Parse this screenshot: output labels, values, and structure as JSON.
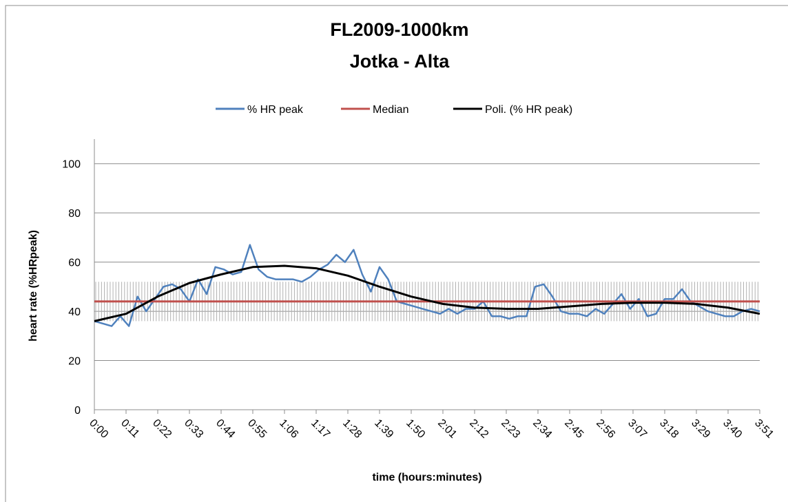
{
  "chart_data": {
    "type": "line",
    "title": [
      "FL2009-1000km",
      "Jotka - Alta"
    ],
    "xlabel": "time (hours:minutes)",
    "ylabel": "heart rate (%HRpeak)",
    "xlim": [
      0,
      231
    ],
    "xticks": [
      {
        "value": 0,
        "label": "0:00"
      },
      {
        "value": 11,
        "label": "0:11"
      },
      {
        "value": 22,
        "label": "0:22"
      },
      {
        "value": 33,
        "label": "0:33"
      },
      {
        "value": 44,
        "label": "0:44"
      },
      {
        "value": 55,
        "label": "0:55"
      },
      {
        "value": 66,
        "label": "1:06"
      },
      {
        "value": 77,
        "label": "1:17"
      },
      {
        "value": 88,
        "label": "1:28"
      },
      {
        "value": 99,
        "label": "1:39"
      },
      {
        "value": 110,
        "label": "1:50"
      },
      {
        "value": 121,
        "label": "2:01"
      },
      {
        "value": 132,
        "label": "2:12"
      },
      {
        "value": 143,
        "label": "2:23"
      },
      {
        "value": 154,
        "label": "2:34"
      },
      {
        "value": 165,
        "label": "2:45"
      },
      {
        "value": 176,
        "label": "2:56"
      },
      {
        "value": 187,
        "label": "3:07"
      },
      {
        "value": 198,
        "label": "3:18"
      },
      {
        "value": 209,
        "label": "3:29"
      },
      {
        "value": 220,
        "label": "3:40"
      },
      {
        "value": 231,
        "label": "3:51"
      }
    ],
    "ylim": [
      0,
      110
    ],
    "yticks": [
      0,
      20,
      40,
      60,
      80,
      100
    ],
    "grid": true,
    "legend": "top",
    "band": {
      "low": 36,
      "high": 52,
      "color": "#b0b0b0"
    },
    "series": [
      {
        "name": "% HR peak",
        "color": "#4f81bd",
        "x": [
          0,
          3,
          6,
          9,
          12,
          15,
          18,
          21,
          24,
          27,
          30,
          33,
          36,
          39,
          42,
          45,
          48,
          51,
          54,
          57,
          60,
          63,
          66,
          69,
          72,
          75,
          78,
          81,
          84,
          87,
          90,
          93,
          96,
          99,
          102,
          105,
          108,
          111,
          114,
          117,
          120,
          123,
          126,
          129,
          132,
          135,
          138,
          141,
          144,
          147,
          150,
          153,
          156,
          159,
          162,
          165,
          168,
          171,
          174,
          177,
          180,
          183,
          186,
          189,
          192,
          195,
          198,
          201,
          204,
          207,
          210,
          213,
          216,
          219,
          222,
          225,
          228,
          231
        ],
        "values": [
          36,
          35,
          34,
          38,
          34,
          46,
          40,
          45,
          50,
          51,
          49,
          44,
          53,
          47,
          58,
          57,
          55,
          56,
          67,
          57,
          54,
          53,
          53,
          53,
          52,
          54,
          57,
          59,
          63,
          60,
          65,
          55,
          48,
          58,
          53,
          44,
          43,
          42,
          41,
          40,
          39,
          41,
          39,
          41,
          41,
          44,
          38,
          38,
          37,
          38,
          38,
          50,
          51,
          46,
          40,
          39,
          39,
          38,
          41,
          39,
          43,
          47,
          41,
          45,
          38,
          39,
          45,
          45,
          49,
          44,
          42,
          40,
          39,
          38,
          38,
          40,
          41,
          40
        ]
      },
      {
        "name": "Median",
        "color": "#c0504d",
        "x": [
          0,
          231
        ],
        "values": [
          44,
          44
        ]
      },
      {
        "name": "Poli. (% HR peak)",
        "color": "#000000",
        "x": [
          0,
          11,
          22,
          33,
          44,
          55,
          66,
          77,
          88,
          99,
          110,
          121,
          132,
          143,
          154,
          165,
          176,
          187,
          198,
          209,
          220,
          231
        ],
        "values": [
          36,
          39,
          46,
          51.5,
          55,
          58,
          58.5,
          57.5,
          54.5,
          50,
          46,
          43,
          41.5,
          41,
          41,
          42,
          43,
          43.5,
          43.5,
          43,
          41.5,
          39
        ]
      }
    ]
  }
}
